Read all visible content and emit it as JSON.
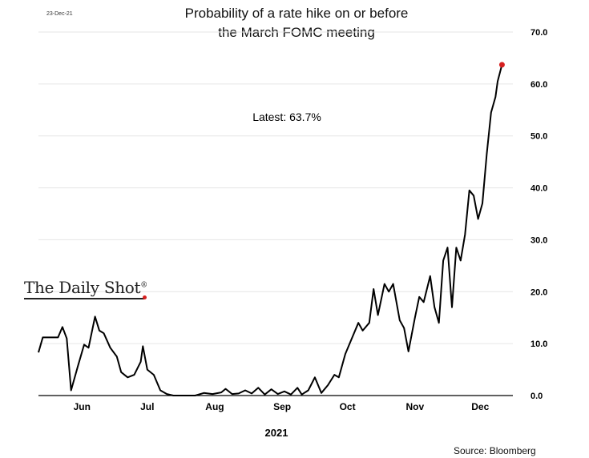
{
  "date_stamp": "23-Dec-21",
  "title_line1": "Probability of a rate hike on or before",
  "title_line2": "the March FOMC meeting",
  "annotation": "Latest:  63.7%",
  "brand": "The Daily Shot",
  "brand_mark": "®",
  "source": "Source: Bloomberg",
  "colors": {
    "line": "#000000",
    "marker": "#d62020",
    "grid": "#e6e6e6"
  },
  "chart_data": {
    "type": "line",
    "xlabel": "2021",
    "ylabel": "",
    "ylim": [
      0,
      70
    ],
    "y_ticks": [
      "0.0",
      "10.0",
      "20.0",
      "30.0",
      "40.0",
      "50.0",
      "60.0",
      "70.0"
    ],
    "x_ticks": [
      {
        "label": "Jun",
        "date": "2021-06-15"
      },
      {
        "label": "Jul",
        "date": "2021-07-15"
      },
      {
        "label": "Aug",
        "date": "2021-08-15"
      },
      {
        "label": "Sep",
        "date": "2021-09-15"
      },
      {
        "label": "Oct",
        "date": "2021-10-15"
      },
      {
        "label": "Nov",
        "date": "2021-11-15"
      },
      {
        "label": "Dec",
        "date": "2021-12-15"
      }
    ],
    "grid": true,
    "series": [
      {
        "values": [
          [
            "2021-05-26",
            8.3
          ],
          [
            "2021-05-28",
            11.2
          ],
          [
            "2021-06-01",
            11.2
          ],
          [
            "2021-06-04",
            11.2
          ],
          [
            "2021-06-06",
            13.2
          ],
          [
            "2021-06-08",
            11.0
          ],
          [
            "2021-06-10",
            1.0
          ],
          [
            "2021-06-13",
            5.5
          ],
          [
            "2021-06-16",
            9.8
          ],
          [
            "2021-06-18",
            9.2
          ],
          [
            "2021-06-21",
            15.2
          ],
          [
            "2021-06-23",
            12.5
          ],
          [
            "2021-06-25",
            12.0
          ],
          [
            "2021-06-28",
            9.2
          ],
          [
            "2021-07-01",
            7.5
          ],
          [
            "2021-07-03",
            4.5
          ],
          [
            "2021-07-06",
            3.5
          ],
          [
            "2021-07-09",
            4.0
          ],
          [
            "2021-07-12",
            6.5
          ],
          [
            "2021-07-13",
            9.5
          ],
          [
            "2021-07-15",
            5.0
          ],
          [
            "2021-07-18",
            4.0
          ],
          [
            "2021-07-21",
            1.0
          ],
          [
            "2021-07-24",
            0.3
          ],
          [
            "2021-07-27",
            0.0
          ],
          [
            "2021-07-31",
            0.0
          ],
          [
            "2021-08-06",
            0.0
          ],
          [
            "2021-08-10",
            0.5
          ],
          [
            "2021-08-14",
            0.3
          ],
          [
            "2021-08-18",
            0.6
          ],
          [
            "2021-08-20",
            1.3
          ],
          [
            "2021-08-23",
            0.3
          ],
          [
            "2021-08-26",
            0.4
          ],
          [
            "2021-08-29",
            1.0
          ],
          [
            "2021-09-01",
            0.4
          ],
          [
            "2021-09-04",
            1.5
          ],
          [
            "2021-09-07",
            0.2
          ],
          [
            "2021-09-10",
            1.2
          ],
          [
            "2021-09-13",
            0.3
          ],
          [
            "2021-09-16",
            0.8
          ],
          [
            "2021-09-19",
            0.2
          ],
          [
            "2021-09-22",
            1.5
          ],
          [
            "2021-09-24",
            0.2
          ],
          [
            "2021-09-27",
            1.0
          ],
          [
            "2021-09-30",
            3.5
          ],
          [
            "2021-10-03",
            0.5
          ],
          [
            "2021-10-06",
            2.0
          ],
          [
            "2021-10-09",
            4.0
          ],
          [
            "2021-10-11",
            3.5
          ],
          [
            "2021-10-14",
            8.0
          ],
          [
            "2021-10-17",
            11.0
          ],
          [
            "2021-10-20",
            14.0
          ],
          [
            "2021-10-22",
            12.5
          ],
          [
            "2021-10-25",
            14.0
          ],
          [
            "2021-10-27",
            20.5
          ],
          [
            "2021-10-29",
            15.5
          ],
          [
            "2021-11-01",
            21.5
          ],
          [
            "2021-11-03",
            20.0
          ],
          [
            "2021-11-05",
            21.5
          ],
          [
            "2021-11-08",
            14.5
          ],
          [
            "2021-11-10",
            13.0
          ],
          [
            "2021-11-12",
            8.5
          ],
          [
            "2021-11-15",
            15.0
          ],
          [
            "2021-11-17",
            19.0
          ],
          [
            "2021-11-19",
            18.0
          ],
          [
            "2021-11-22",
            23.0
          ],
          [
            "2021-11-24",
            17.0
          ],
          [
            "2021-11-26",
            14.0
          ],
          [
            "2021-11-28",
            26.0
          ],
          [
            "2021-11-30",
            28.5
          ],
          [
            "2021-12-02",
            17.0
          ],
          [
            "2021-12-04",
            28.5
          ],
          [
            "2021-12-06",
            26.0
          ],
          [
            "2021-12-08",
            31.0
          ],
          [
            "2021-12-10",
            39.5
          ],
          [
            "2021-12-12",
            38.5
          ],
          [
            "2021-12-14",
            34.0
          ],
          [
            "2021-12-16",
            37.0
          ],
          [
            "2021-12-18",
            46.5
          ],
          [
            "2021-12-20",
            54.5
          ],
          [
            "2021-12-22",
            57.5
          ],
          [
            "2021-12-23",
            60.5
          ],
          [
            "2021-12-25",
            63.7
          ]
        ]
      }
    ],
    "latest_marker": [
      "2021-12-25",
      63.7
    ]
  }
}
